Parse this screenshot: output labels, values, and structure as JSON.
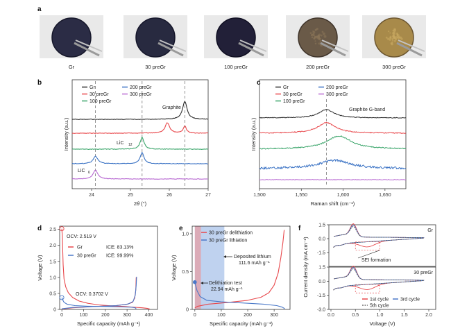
{
  "panel_a": {
    "label": "a",
    "samples": [
      {
        "name": "Gr",
        "disc": "#2b2c45",
        "rim": "#16172a"
      },
      {
        "name": "30 preGr",
        "disc": "#282a40",
        "rim": "#15162a"
      },
      {
        "name": "100 preGr",
        "disc": "#222038",
        "rim": "#100f22"
      },
      {
        "name": "200 preGr",
        "disc": "#6a5a48",
        "rim": "#3f342a"
      },
      {
        "name": "300 preGr",
        "disc": "#a88a4a",
        "rim": "#6c5630"
      }
    ]
  },
  "panel_b": {
    "label": "b",
    "xlabel_theta": "θ",
    "xlabel_pre": "2",
    "xlabel_post": " (°)",
    "ylabel": "Intensity (a.u.)",
    "legend": [
      "Gr",
      "30 preGr",
      "100 preGr",
      "200 preGr",
      "300 preGr"
    ],
    "annotations": {
      "graphite": "Graphite",
      "licx": "LiC",
      "licx_sub": "12",
      "lic6": "LiC",
      "lic6_sub": "6"
    }
  },
  "panel_c": {
    "label": "c",
    "xlabel": "Raman shift (cm⁻¹)",
    "ylabel": "Intensity (a.u.)",
    "legend": [
      "Gr",
      "30 preGr",
      "100 preGr",
      "200 preGr",
      "300 preGr"
    ],
    "annotation": "Graphite G-band"
  },
  "panel_d": {
    "label": "d",
    "xlabel": "Specific capacity (mAh g⁻¹)",
    "ylabel": "Voltage (V)",
    "legend": [
      "Gr",
      "30 preGr"
    ],
    "ice": [
      "ICE: 83.13%",
      "ICE: 99.99%"
    ],
    "ocv_top": "OCV: 2.519 V",
    "ocv_bottom": "OCV: 0.3702 V"
  },
  "panel_e": {
    "label": "e",
    "xlabel": "Specific capacity (mAh g⁻¹)",
    "ylabel": "Voltage (V)",
    "legend": [
      "30 preGr delithiation",
      "30 preGr lithiation"
    ],
    "deposited_lines": [
      "Deposited lithium",
      "111.6 mAh g⁻¹"
    ],
    "delith_lines": [
      "Delithiation test",
      "22.94 mAh g⁻¹"
    ]
  },
  "panel_f": {
    "label": "f",
    "ylabel": "Current density (mA cm⁻²)",
    "xlabel": "Voltage (V)",
    "top_name": "Gr",
    "bottom_name": "30 preGr",
    "sei": "SEI formation",
    "legend": [
      "1st cycle",
      "3rd cycle",
      "5th cycle"
    ]
  },
  "colors": {
    "gr": "#2b2b2b",
    "p30": "#e8474b",
    "p100": "#3aa56a",
    "p200": "#3a72c4",
    "p300": "#b86ad2",
    "blue": "#4a78c8",
    "red": "#e8474b",
    "shade": "#a9c3ea"
  },
  "chart_data": [
    {
      "type": "line",
      "panel": "b",
      "xlim": [
        23.5,
        27
      ],
      "x_ticks": [
        24,
        25,
        26,
        27
      ],
      "peaks": {
        "Gr": [
          26.4
        ],
        "30 preGr": [
          25.95,
          26.4
        ],
        "100 preGr": [
          25.3
        ],
        "200 preGr": [
          24.1,
          25.3
        ],
        "300 preGr": [
          24.1
        ]
      },
      "dashed_lines_x": [
        24.1,
        25.3,
        26.4
      ]
    },
    {
      "type": "line",
      "panel": "c",
      "xlim": [
        1500,
        1675
      ],
      "x_ticks": [
        1500,
        1550,
        1600,
        1650
      ],
      "x_tick_labels": [
        "1,500",
        "1,550",
        "1,600",
        "1,650"
      ],
      "peaks": {
        "Gr": [
          1580
        ],
        "30 preGr": [
          1580
        ],
        "100 preGr": [
          1595
        ],
        "200 preGr": [
          1590
        ]
      },
      "dashed_lines_x": [
        1580
      ]
    },
    {
      "type": "line",
      "panel": "d",
      "xlim": [
        -10,
        440
      ],
      "ylim": [
        0,
        2.6
      ],
      "x_ticks": [
        0,
        100,
        200,
        300,
        400
      ],
      "y_ticks": [
        0,
        0.5,
        1.0,
        1.5,
        2.0,
        2.5
      ],
      "series": [
        {
          "name": "Gr",
          "points": [
            [
              0,
              2.52
            ],
            [
              2,
              2.3
            ],
            [
              6,
              1.4
            ],
            [
              10,
              0.95
            ],
            [
              18,
              0.7
            ],
            [
              30,
              0.52
            ],
            [
              50,
              0.37
            ],
            [
              80,
              0.26
            ],
            [
              120,
              0.19
            ],
            [
              170,
              0.14
            ],
            [
              230,
              0.11
            ],
            [
              290,
              0.09
            ],
            [
              330,
              0.07
            ],
            [
              370,
              0.05
            ],
            [
              395,
              0.03
            ],
            [
              405,
              0.01
            ]
          ]
        },
        {
          "name": "Gr",
          "points": [
            [
              0,
              0.01
            ],
            [
              50,
              0.05
            ],
            [
              150,
              0.09
            ],
            [
              250,
              0.12
            ],
            [
              300,
              0.16
            ],
            [
              325,
              0.22
            ],
            [
              335,
              0.35
            ],
            [
              340,
              0.6
            ],
            [
              342,
              1.0
            ]
          ]
        },
        {
          "name": "30 preGr",
          "points": [
            [
              0,
              0.37
            ],
            [
              4,
              0.3
            ],
            [
              10,
              0.22
            ],
            [
              25,
              0.16
            ],
            [
              60,
              0.12
            ],
            [
              120,
              0.1
            ],
            [
              200,
              0.09
            ],
            [
              270,
              0.08
            ],
            [
              320,
              0.07
            ],
            [
              338,
              0.05
            ],
            [
              342,
              0.02
            ]
          ]
        },
        {
          "name": "30 preGr",
          "points": [
            [
              0,
              0.02
            ],
            [
              50,
              0.06
            ],
            [
              150,
              0.09
            ],
            [
              250,
              0.12
            ],
            [
              305,
              0.17
            ],
            [
              328,
              0.25
            ],
            [
              338,
              0.45
            ],
            [
              342,
              0.75
            ],
            [
              344,
              1.02
            ]
          ]
        }
      ]
    },
    {
      "type": "line",
      "panel": "e",
      "xlim": [
        -10,
        360
      ],
      "ylim": [
        0,
        1.1
      ],
      "x_ticks": [
        0,
        100,
        200,
        300
      ],
      "y_ticks": [
        0,
        0.5,
        1.0
      ],
      "series": [
        {
          "name": "30 preGr delithiation",
          "points": [
            [
              0,
              0.02
            ],
            [
              10,
              0.04
            ],
            [
              50,
              0.07
            ],
            [
              120,
              0.09
            ],
            [
              200,
              0.12
            ],
            [
              250,
              0.16
            ],
            [
              280,
              0.22
            ],
            [
              300,
              0.32
            ],
            [
              315,
              0.48
            ],
            [
              325,
              0.68
            ],
            [
              333,
              0.88
            ],
            [
              338,
              1.05
            ]
          ]
        },
        {
          "name": "30 preGr lithiation",
          "points": [
            [
              0,
              0.36
            ],
            [
              8,
              0.25
            ],
            [
              20,
              0.17
            ],
            [
              45,
              0.12
            ],
            [
              100,
              0.1
            ],
            [
              180,
              0.085
            ],
            [
              260,
              0.07
            ],
            [
              310,
              0.05
            ],
            [
              330,
              0.03
            ],
            [
              340,
              0.01
            ]
          ]
        }
      ],
      "shaded_x": [
        0,
        111.6
      ],
      "dark_band_x": [
        0,
        22.94
      ]
    },
    {
      "type": "line",
      "panel": "f",
      "xlim": [
        0,
        2.0
      ],
      "ylim": [
        -3.0,
        1.5
      ],
      "x_ticks": [
        0,
        0.5,
        1.0,
        1.5,
        2.0
      ],
      "y_ticks": [
        -3.0,
        -1.5,
        0,
        1.5
      ],
      "subplots": [
        "Gr",
        "30 preGr"
      ]
    }
  ]
}
